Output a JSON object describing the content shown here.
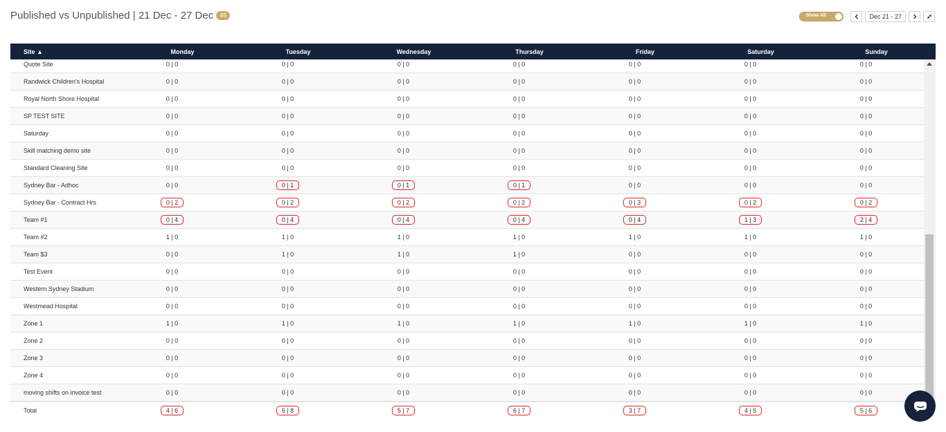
{
  "header": {
    "title": "Published vs Unpublished | 21 Dec - 27 Dec",
    "badge": "46"
  },
  "controls": {
    "toggle_label": "Show All",
    "prev_icon": "chevron-left-icon",
    "date_range": "Dec 21 - 27",
    "next_icon": "chevron-right-icon",
    "collapse_icon": "compress-icon"
  },
  "table": {
    "columns": [
      "Site ▲",
      "Monday",
      "Tuesday",
      "Wednesday",
      "Thursday",
      "Friday",
      "Saturday",
      "Sunday"
    ],
    "rows": [
      {
        "site": "Quote Site",
        "cells": [
          "0 | 0",
          "0 | 0",
          "0 | 0",
          "0 | 0",
          "0 | 0",
          "0 | 0",
          "0 | 0"
        ],
        "hl": [
          false,
          false,
          false,
          false,
          false,
          false,
          false
        ]
      },
      {
        "site": "Randwick Children's Hospital",
        "cells": [
          "0 | 0",
          "0 | 0",
          "0 | 0",
          "0 | 0",
          "0 | 0",
          "0 | 0",
          "0 | 0"
        ],
        "hl": [
          false,
          false,
          false,
          false,
          false,
          false,
          false
        ]
      },
      {
        "site": "Royal North Shore Hospital",
        "cells": [
          "0 | 0",
          "0 | 0",
          "0 | 0",
          "0 | 0",
          "0 | 0",
          "0 | 0",
          "0 | 0"
        ],
        "hl": [
          false,
          false,
          false,
          false,
          false,
          false,
          false
        ]
      },
      {
        "site": "SP TEST SITE",
        "cells": [
          "0 | 0",
          "0 | 0",
          "0 | 0",
          "0 | 0",
          "0 | 0",
          "0 | 0",
          "0 | 0"
        ],
        "hl": [
          false,
          false,
          false,
          false,
          false,
          false,
          false
        ]
      },
      {
        "site": "Saturday",
        "cells": [
          "0 | 0",
          "0 | 0",
          "0 | 0",
          "0 | 0",
          "0 | 0",
          "0 | 0",
          "0 | 0"
        ],
        "hl": [
          false,
          false,
          false,
          false,
          false,
          false,
          false
        ]
      },
      {
        "site": "Skill matching demo site",
        "cells": [
          "0 | 0",
          "0 | 0",
          "0 | 0",
          "0 | 0",
          "0 | 0",
          "0 | 0",
          "0 | 0"
        ],
        "hl": [
          false,
          false,
          false,
          false,
          false,
          false,
          false
        ]
      },
      {
        "site": "Standard Cleaning Site",
        "cells": [
          "0 | 0",
          "0 | 0",
          "0 | 0",
          "0 | 0",
          "0 | 0",
          "0 | 0",
          "0 | 0"
        ],
        "hl": [
          false,
          false,
          false,
          false,
          false,
          false,
          false
        ]
      },
      {
        "site": "Sydney Bar - Adhoc",
        "cells": [
          "0 | 0",
          "0 | 1",
          "0 | 1",
          "0 | 1",
          "0 | 0",
          "0 | 0",
          "0 | 0"
        ],
        "hl": [
          false,
          true,
          true,
          true,
          false,
          false,
          false
        ]
      },
      {
        "site": "Sydney Bar - Contract Hrs",
        "cells": [
          "0 | 2",
          "0 | 2",
          "0 | 2",
          "0 | 2",
          "0 | 3",
          "0 | 2",
          "0 | 2"
        ],
        "hl": [
          true,
          true,
          true,
          true,
          true,
          true,
          true
        ]
      },
      {
        "site": "Team #1",
        "cells": [
          "0 | 4",
          "0 | 4",
          "0 | 4",
          "0 | 4",
          "0 | 4",
          "1 | 3",
          "2 | 4"
        ],
        "hl": [
          true,
          true,
          true,
          true,
          true,
          true,
          true
        ]
      },
      {
        "site": "Team #2",
        "cells": [
          "1 | 0",
          "1 | 0",
          "1 | 0",
          "1 | 0",
          "1 | 0",
          "1 | 0",
          "1 | 0"
        ],
        "hl": [
          false,
          false,
          false,
          false,
          false,
          false,
          false
        ]
      },
      {
        "site": "Team $3",
        "cells": [
          "0 | 0",
          "1 | 0",
          "1 | 0",
          "1 | 0",
          "0 | 0",
          "0 | 0",
          "0 | 0"
        ],
        "hl": [
          false,
          false,
          false,
          false,
          false,
          false,
          false
        ]
      },
      {
        "site": "Test Event",
        "cells": [
          "0 | 0",
          "0 | 0",
          "0 | 0",
          "0 | 0",
          "0 | 0",
          "0 | 0",
          "0 | 0"
        ],
        "hl": [
          false,
          false,
          false,
          false,
          false,
          false,
          false
        ]
      },
      {
        "site": "Western Sydney Stadium",
        "cells": [
          "0 | 0",
          "0 | 0",
          "0 | 0",
          "0 | 0",
          "0 | 0",
          "0 | 0",
          "0 | 0"
        ],
        "hl": [
          false,
          false,
          false,
          false,
          false,
          false,
          false
        ]
      },
      {
        "site": "Westmead Hospital",
        "cells": [
          "0 | 0",
          "0 | 0",
          "0 | 0",
          "0 | 0",
          "0 | 0",
          "0 | 0",
          "0 | 0"
        ],
        "hl": [
          false,
          false,
          false,
          false,
          false,
          false,
          false
        ]
      },
      {
        "site": "Zone 1",
        "cells": [
          "1 | 0",
          "1 | 0",
          "1 | 0",
          "1 | 0",
          "1 | 0",
          "1 | 0",
          "1 | 0"
        ],
        "hl": [
          false,
          false,
          false,
          false,
          false,
          false,
          false
        ]
      },
      {
        "site": "Zone 2",
        "cells": [
          "0 | 0",
          "0 | 0",
          "0 | 0",
          "0 | 0",
          "0 | 0",
          "0 | 0",
          "0 | 0"
        ],
        "hl": [
          false,
          false,
          false,
          false,
          false,
          false,
          false
        ]
      },
      {
        "site": "Zone 3",
        "cells": [
          "0 | 0",
          "0 | 0",
          "0 | 0",
          "0 | 0",
          "0 | 0",
          "0 | 0",
          "0 | 0"
        ],
        "hl": [
          false,
          false,
          false,
          false,
          false,
          false,
          false
        ]
      },
      {
        "site": "Zone 4",
        "cells": [
          "0 | 0",
          "0 | 0",
          "0 | 0",
          "0 | 0",
          "0 | 0",
          "0 | 0",
          "0 | 0"
        ],
        "hl": [
          false,
          false,
          false,
          false,
          false,
          false,
          false
        ]
      },
      {
        "site": "moving shifts on invoice test",
        "cells": [
          "0 | 0",
          "0 | 0",
          "0 | 0",
          "0 | 0",
          "0 | 0",
          "0 | 0",
          "0 | 0"
        ],
        "hl": [
          false,
          false,
          false,
          false,
          false,
          false,
          false
        ]
      }
    ],
    "total": {
      "label": "Total",
      "cells": [
        "4 | 6",
        "6 | 8",
        "5 | 7",
        "6 | 7",
        "3 | 7",
        "4 | 5",
        "5 | 6"
      ]
    }
  },
  "colors": {
    "header_bg": "#14223a",
    "accent": "#c9aa6a",
    "highlight_border": "#e02525"
  },
  "chat": {
    "icon": "chat-icon"
  }
}
